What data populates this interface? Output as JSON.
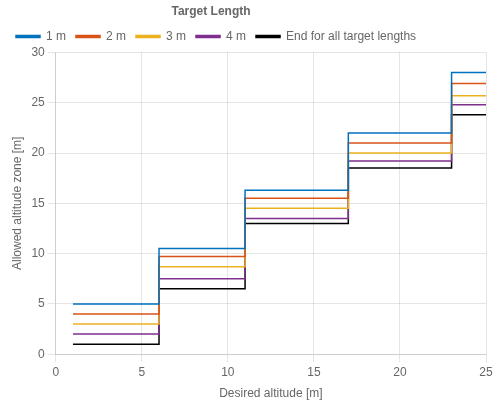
{
  "chart_data": {
    "type": "line",
    "xlabel": "Desired altitude [m]",
    "ylabel": "Allowed altitude zone [m]",
    "xlim": [
      0,
      25
    ],
    "ylim": [
      0,
      30
    ],
    "xticks": [
      0,
      5,
      10,
      15,
      20,
      25
    ],
    "yticks": [
      0,
      5,
      10,
      15,
      20,
      25,
      30
    ],
    "grid": true,
    "legend": "upper left",
    "legend_title": "Target Length",
    "series": [
      {
        "name": "1 m",
        "color": "#0072BD",
        "x": [
          1,
          6,
          6,
          11,
          11,
          17,
          17,
          23,
          23,
          25
        ],
        "values": [
          5.0,
          5.0,
          10.5,
          10.5,
          16.3,
          16.3,
          22.0,
          22.0,
          28.0,
          28.0
        ]
      },
      {
        "name": "2 m",
        "color": "#D95319",
        "x": [
          1,
          6,
          6,
          11,
          11,
          17,
          17,
          23,
          23,
          25
        ],
        "values": [
          4.0,
          4.0,
          9.7,
          9.7,
          15.5,
          15.5,
          21.0,
          21.0,
          26.9,
          26.9
        ]
      },
      {
        "name": "3 m",
        "color": "#EDB120",
        "x": [
          1,
          6,
          6,
          11,
          11,
          17,
          17,
          23,
          23,
          25
        ],
        "values": [
          3.0,
          3.0,
          8.7,
          8.7,
          14.5,
          14.5,
          20.0,
          20.0,
          25.7,
          25.7
        ]
      },
      {
        "name": "4 m",
        "color": "#7E2F8E",
        "x": [
          1,
          6,
          6,
          11,
          11,
          17,
          17,
          23,
          23,
          25
        ],
        "values": [
          2.0,
          2.0,
          7.5,
          7.5,
          13.5,
          13.5,
          19.2,
          19.2,
          24.8,
          24.8
        ]
      },
      {
        "name": "End for all target lengths",
        "color": "#000000",
        "x": [
          1,
          6,
          6,
          11,
          11,
          17,
          17,
          23,
          23,
          25
        ],
        "values": [
          1.0,
          1.0,
          6.5,
          6.5,
          13.0,
          13.0,
          18.5,
          18.5,
          23.8,
          23.8
        ]
      }
    ]
  }
}
